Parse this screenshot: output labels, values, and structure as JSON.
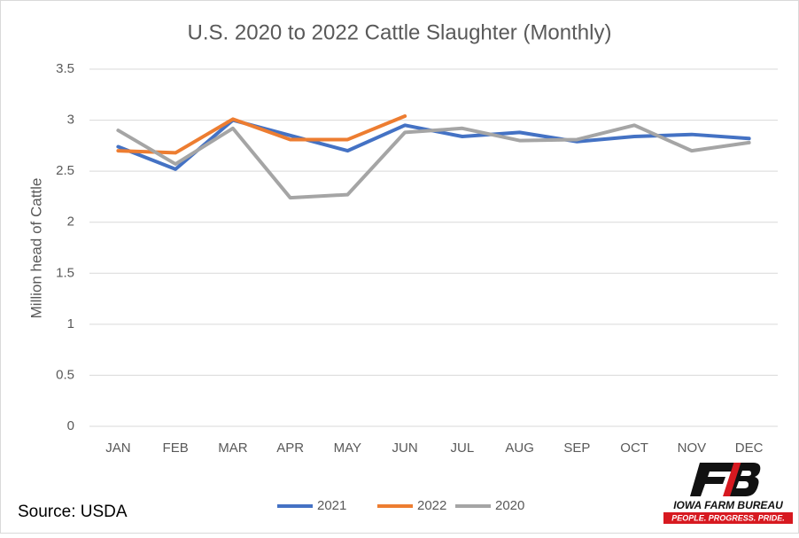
{
  "chart_data": {
    "type": "line",
    "title": "U.S. 2020 to 2022 Cattle Slaughter (Monthly)",
    "y_label": "Million head of Cattle",
    "source": "Source: USDA",
    "logo": {
      "name": "IOWA FARM BUREAU",
      "tagline": "PEOPLE. PROGRESS. PRIDE."
    },
    "categories": [
      "JAN",
      "FEB",
      "MAR",
      "APR",
      "MAY",
      "JUN",
      "JUL",
      "AUG",
      "SEP",
      "OCT",
      "NOV",
      "DEC"
    ],
    "series": [
      {
        "name": "2021",
        "color": "#4472c4",
        "values": [
          2.74,
          2.52,
          3.0,
          2.85,
          2.7,
          2.95,
          2.84,
          2.88,
          2.79,
          2.84,
          2.86,
          2.82
        ]
      },
      {
        "name": "2022",
        "color": "#ed7d31",
        "values": [
          2.7,
          2.68,
          3.01,
          2.81,
          2.81,
          3.04,
          null,
          null,
          null,
          null,
          null,
          null
        ]
      },
      {
        "name": "2020",
        "color": "#a5a5a5",
        "values": [
          2.9,
          2.57,
          2.92,
          2.24,
          2.27,
          2.88,
          2.92,
          2.8,
          2.81,
          2.95,
          2.7,
          2.78
        ]
      }
    ],
    "ylim": [
      0,
      3.5
    ],
    "yticks": [
      0,
      0.5,
      1,
      1.5,
      2,
      2.5,
      3,
      3.5
    ],
    "grid": true,
    "legend": "bottom"
  }
}
